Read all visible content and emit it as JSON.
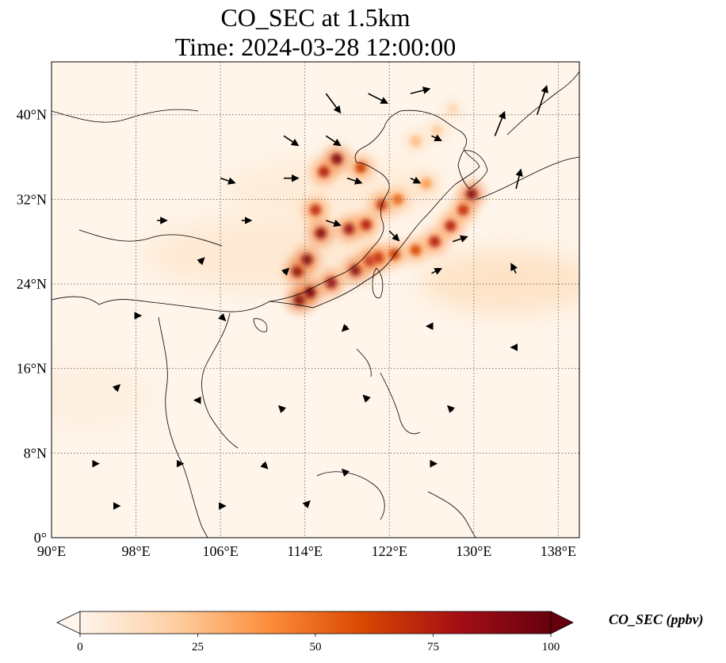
{
  "title": {
    "line1": "CO_SEC at 1.5km",
    "line2": "Time: 2024-03-28 12:00:00"
  },
  "map": {
    "lon_range": [
      90,
      140
    ],
    "lat_range": [
      0,
      45
    ],
    "gridlines": "dotted",
    "x_ticks": [
      {
        "value": 90,
        "label": "90°E"
      },
      {
        "value": 98,
        "label": "98°E"
      },
      {
        "value": 106,
        "label": "106°E"
      },
      {
        "value": 114,
        "label": "114°E"
      },
      {
        "value": 122,
        "label": "122°E"
      },
      {
        "value": 130,
        "label": "130°E"
      },
      {
        "value": 138,
        "label": "138°E"
      }
    ],
    "y_ticks": [
      {
        "value": 0,
        "label": "0°"
      },
      {
        "value": 8,
        "label": "8°N"
      },
      {
        "value": 16,
        "label": "16°N"
      },
      {
        "value": 24,
        "label": "24°N"
      },
      {
        "value": 32,
        "label": "32°N"
      },
      {
        "value": 40,
        "label": "40°N"
      }
    ]
  },
  "colorbar": {
    "label": "CO_SEC (ppbv)",
    "min": 0,
    "max": 100,
    "ticks": [
      {
        "value": 0,
        "label": "0"
      },
      {
        "value": 25,
        "label": "25"
      },
      {
        "value": 50,
        "label": "50"
      },
      {
        "value": 75,
        "label": "75"
      },
      {
        "value": 100,
        "label": "100"
      }
    ],
    "extend": "both",
    "colormap": [
      "#fff5eb",
      "#fdd0a2",
      "#fd8d3c",
      "#d94801",
      "#a50f15",
      "#67000d"
    ]
  },
  "chart_data": {
    "type": "heatmap",
    "variable": "CO_SEC",
    "units": "ppbv",
    "level": "1.5km",
    "time": "2024-03-28 12:00:00",
    "plumes": [
      {
        "lon": 113.5,
        "lat": 22.5,
        "value": 100
      },
      {
        "lon": 114.5,
        "lat": 23.2,
        "value": 95
      },
      {
        "lon": 113.3,
        "lat": 25.2,
        "value": 90
      },
      {
        "lon": 114.2,
        "lat": 26.3,
        "value": 90
      },
      {
        "lon": 116.5,
        "lat": 24.1,
        "value": 85
      },
      {
        "lon": 118.8,
        "lat": 25.3,
        "value": 90
      },
      {
        "lon": 120.2,
        "lat": 26.2,
        "value": 80
      },
      {
        "lon": 121.0,
        "lat": 26.5,
        "value": 70
      },
      {
        "lon": 122.5,
        "lat": 26.8,
        "value": 65
      },
      {
        "lon": 124.5,
        "lat": 27.2,
        "value": 60
      },
      {
        "lon": 126.3,
        "lat": 28.0,
        "value": 75
      },
      {
        "lon": 127.8,
        "lat": 29.5,
        "value": 75
      },
      {
        "lon": 129.0,
        "lat": 31.0,
        "value": 70
      },
      {
        "lon": 129.8,
        "lat": 32.5,
        "value": 90
      },
      {
        "lon": 115.5,
        "lat": 28.8,
        "value": 90
      },
      {
        "lon": 118.2,
        "lat": 29.2,
        "value": 85
      },
      {
        "lon": 119.8,
        "lat": 29.6,
        "value": 75
      },
      {
        "lon": 115.0,
        "lat": 31.0,
        "value": 70
      },
      {
        "lon": 117.0,
        "lat": 35.8,
        "value": 95
      },
      {
        "lon": 115.8,
        "lat": 34.6,
        "value": 75
      },
      {
        "lon": 119.3,
        "lat": 35.0,
        "value": 65
      },
      {
        "lon": 121.3,
        "lat": 31.5,
        "value": 70
      },
      {
        "lon": 122.8,
        "lat": 32.0,
        "value": 50
      },
      {
        "lon": 125.5,
        "lat": 33.5,
        "value": 35
      },
      {
        "lon": 124.5,
        "lat": 37.5,
        "value": 25
      },
      {
        "lon": 126.5,
        "lat": 38.5,
        "value": 20
      },
      {
        "lon": 128.0,
        "lat": 40.5,
        "value": 15
      }
    ],
    "wind_vectors": [
      {
        "lon": 116,
        "lat": 42,
        "u": 3,
        "v": -4
      },
      {
        "lon": 120,
        "lat": 42,
        "u": 4,
        "v": -2
      },
      {
        "lon": 124,
        "lat": 42,
        "u": 4,
        "v": 1
      },
      {
        "lon": 112,
        "lat": 38,
        "u": 3,
        "v": -2
      },
      {
        "lon": 116,
        "lat": 38,
        "u": 3,
        "v": -2
      },
      {
        "lon": 126,
        "lat": 38,
        "u": 2,
        "v": -1
      },
      {
        "lon": 132,
        "lat": 38,
        "u": 2,
        "v": 5
      },
      {
        "lon": 136,
        "lat": 40,
        "u": 2,
        "v": 6
      },
      {
        "lon": 106,
        "lat": 34,
        "u": 3,
        "v": -1
      },
      {
        "lon": 112,
        "lat": 34,
        "u": 3,
        "v": 0
      },
      {
        "lon": 118,
        "lat": 34,
        "u": 3,
        "v": -1
      },
      {
        "lon": 124,
        "lat": 34,
        "u": 2,
        "v": -1
      },
      {
        "lon": 134,
        "lat": 33,
        "u": 1,
        "v": 4
      },
      {
        "lon": 100,
        "lat": 30,
        "u": 2,
        "v": 0
      },
      {
        "lon": 108,
        "lat": 30,
        "u": 2,
        "v": 0
      },
      {
        "lon": 116,
        "lat": 30,
        "u": 3,
        "v": -1
      },
      {
        "lon": 122,
        "lat": 29,
        "u": 2,
        "v": -2
      },
      {
        "lon": 128,
        "lat": 28,
        "u": 3,
        "v": 1
      },
      {
        "lon": 104,
        "lat": 26,
        "u": 1,
        "v": 1
      },
      {
        "lon": 112,
        "lat": 25,
        "u": 1,
        "v": 1
      },
      {
        "lon": 126,
        "lat": 25,
        "u": 2,
        "v": 1
      },
      {
        "lon": 134,
        "lat": 25,
        "u": -1,
        "v": 2
      },
      {
        "lon": 98,
        "lat": 21,
        "u": 1,
        "v": 0
      },
      {
        "lon": 106,
        "lat": 21,
        "u": 1,
        "v": -1
      },
      {
        "lon": 118,
        "lat": 20,
        "u": -1,
        "v": -1
      },
      {
        "lon": 126,
        "lat": 20,
        "u": -1,
        "v": 0
      },
      {
        "lon": 134,
        "lat": 18,
        "u": -1,
        "v": 0
      },
      {
        "lon": 96,
        "lat": 14,
        "u": 1,
        "v": 1
      },
      {
        "lon": 104,
        "lat": 13,
        "u": -1,
        "v": 0
      },
      {
        "lon": 112,
        "lat": 12,
        "u": -1,
        "v": 1
      },
      {
        "lon": 120,
        "lat": 13,
        "u": -1,
        "v": 1
      },
      {
        "lon": 128,
        "lat": 12,
        "u": -1,
        "v": 1
      },
      {
        "lon": 94,
        "lat": 7,
        "u": 1,
        "v": 0
      },
      {
        "lon": 102,
        "lat": 7,
        "u": 1,
        "v": 0
      },
      {
        "lon": 110,
        "lat": 7,
        "u": 1,
        "v": -1
      },
      {
        "lon": 118,
        "lat": 6,
        "u": -1,
        "v": 1
      },
      {
        "lon": 126,
        "lat": 7,
        "u": 1,
        "v": 0
      },
      {
        "lon": 96,
        "lat": 3,
        "u": 1,
        "v": 0
      },
      {
        "lon": 106,
        "lat": 3,
        "u": 1,
        "v": 0
      },
      {
        "lon": 114,
        "lat": 3,
        "u": 1,
        "v": 1
      }
    ]
  }
}
